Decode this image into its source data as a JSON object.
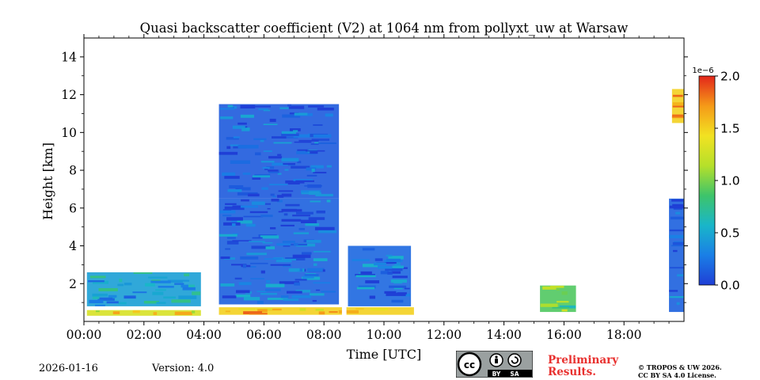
{
  "chart_data": {
    "type": "heatmap",
    "title": "Quasi backscatter coefficient (V2) at 1064 nm from pollyxt_uw at Warsaw",
    "xlabel": "Time [UTC]",
    "ylabel": "Height [km]",
    "xlim": [
      0,
      20
    ],
    "ylim": [
      0,
      15
    ],
    "x_ticks": [
      0,
      2,
      4,
      6,
      8,
      10,
      12,
      14,
      16,
      18
    ],
    "x_tick_labels": [
      "00:00",
      "02:00",
      "04:00",
      "06:00",
      "08:00",
      "10:00",
      "12:00",
      "14:00",
      "16:00",
      "18:00"
    ],
    "y_ticks": [
      2,
      4,
      6,
      8,
      10,
      12,
      14
    ],
    "y_tick_labels": [
      "2",
      "4",
      "6",
      "8",
      "10",
      "12",
      "14"
    ],
    "colorbar": {
      "range": [
        0.0,
        2.0
      ],
      "ticks": [
        0.0,
        0.5,
        1.0,
        1.5,
        2.0
      ],
      "tick_labels": [
        "0.0",
        "0.5",
        "1.0",
        "1.5",
        "2.0"
      ],
      "exponent_label": "1e−6",
      "colormap": [
        "#1f3fd6",
        "#1a7fe6",
        "#19b6c9",
        "#3ec46a",
        "#b6e02a",
        "#f2e222",
        "#f59a18",
        "#e3261b"
      ]
    },
    "regions": [
      {
        "name": "boundary-layer-night",
        "t": [
          0.1,
          3.9
        ],
        "h": [
          0.8,
          2.6
        ],
        "value": 0.45
      },
      {
        "name": "surface-layer-night",
        "t": [
          0.1,
          3.9
        ],
        "h": [
          0.3,
          0.6
        ],
        "value": 1.3
      },
      {
        "name": "aerosol-layer-morning",
        "t": [
          4.5,
          8.5
        ],
        "h": [
          0.9,
          6.5
        ],
        "value": 0.15
      },
      {
        "name": "upper-cloud-morning",
        "t": [
          4.5,
          8.5
        ],
        "h": [
          6.5,
          11.5
        ],
        "value": 0.12
      },
      {
        "name": "surface-layer-morning",
        "t": [
          4.5,
          11.0
        ],
        "h": [
          0.35,
          0.75
        ],
        "value": 1.5
      },
      {
        "name": "aerosol-layer-late-morning",
        "t": [
          8.8,
          10.9
        ],
        "h": [
          0.8,
          4.0
        ],
        "value": 0.18
      },
      {
        "name": "aerosol-patch-afternoon",
        "t": [
          15.2,
          16.4
        ],
        "h": [
          0.5,
          1.9
        ],
        "value": 0.9
      },
      {
        "name": "aerosol-column-evening",
        "t": [
          19.5,
          20.0
        ],
        "h": [
          0.5,
          6.5
        ],
        "value": 0.15
      },
      {
        "name": "cloud-evening",
        "t": [
          19.6,
          20.0
        ],
        "h": [
          10.5,
          12.3
        ],
        "value": 1.5
      }
    ],
    "gaps": [
      {
        "t": [
          3.95,
          4.15
        ]
      },
      {
        "t": [
          8.6,
          8.75
        ]
      }
    ]
  },
  "footer": {
    "date": "2026-01-16",
    "version": "Version: 4.0",
    "license_badge": {
      "cc": "cc",
      "by": "BY",
      "sa": "SA"
    },
    "preliminary": [
      "Preliminary",
      "Results."
    ],
    "copyright": [
      "© TROPOS & UW 2026.",
      "CC BY SA 4.0 License."
    ]
  }
}
